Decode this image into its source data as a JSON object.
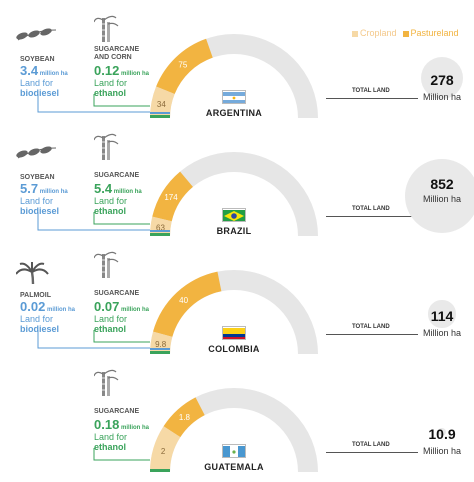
{
  "legend": {
    "cropland": "Cropland",
    "pastureland": "Pastureland"
  },
  "labels": {
    "total_land": "TOTAL LAND",
    "million_ha": "Million ha",
    "million_ha_small": "million ha",
    "land_for": "Land for",
    "biodiesel": "biodiesel",
    "ethanol": "ethanol"
  },
  "colors": {
    "cropland": "#f6d9a6",
    "pastureland": "#f2b441",
    "other": "#e6e6e6",
    "biodiesel": "#5b9bd5",
    "ethanol": "#3aa35b"
  },
  "chart_data": {
    "type": "gauge",
    "unit": "Million ha",
    "countries": [
      {
        "name": "ARGENTINA",
        "flag": "argentina-flag",
        "cropland": 34,
        "pastureland": 75,
        "total_land": 278,
        "total_display": "278",
        "biodiesel": {
          "feedstock": "SOYBEAN",
          "value": "3.4",
          "icon": "soybean-icon"
        },
        "ethanol": {
          "feedstock": "SUGARCANE AND CORN",
          "feedstock_lines": [
            "SUGARCANE",
            "AND CORN"
          ],
          "value": "0.12",
          "icon": "sugarcane-icon"
        },
        "cropland_label": "34",
        "pastureland_label": "75"
      },
      {
        "name": "BRAZIL",
        "flag": "brazil-flag",
        "cropland": 63,
        "pastureland": 174,
        "total_land": 852,
        "total_display": "852",
        "biodiesel": {
          "feedstock": "SOYBEAN",
          "value": "5.7",
          "icon": "soybean-icon"
        },
        "ethanol": {
          "feedstock": "SUGARCANE",
          "feedstock_lines": [
            "SUGARCANE"
          ],
          "value": "5.4",
          "icon": "sugarcane-icon"
        },
        "cropland_label": "63",
        "pastureland_label": "174"
      },
      {
        "name": "COLOMBIA",
        "flag": "colombia-flag",
        "cropland": 9.8,
        "pastureland": 40,
        "total_land": 114,
        "total_display": "114",
        "biodiesel": {
          "feedstock": "PALMOIL",
          "value": "0.02",
          "icon": "palm-tree-icon"
        },
        "ethanol": {
          "feedstock": "SUGARCANE",
          "feedstock_lines": [
            "SUGARCANE"
          ],
          "value": "0.07",
          "icon": "sugarcane-icon"
        },
        "cropland_label": "9.8",
        "pastureland_label": "40"
      },
      {
        "name": "GUATEMALA",
        "flag": "guatemala-flag",
        "cropland": 2,
        "pastureland": 1.8,
        "total_land": 10.9,
        "total_display": "10.9",
        "biodiesel": null,
        "ethanol": {
          "feedstock": "SUGARCANE",
          "feedstock_lines": [
            "SUGARCANE"
          ],
          "value": "0.18",
          "icon": "sugarcane-icon"
        },
        "cropland_label": "2",
        "pastureland_label": "1.8"
      }
    ]
  }
}
